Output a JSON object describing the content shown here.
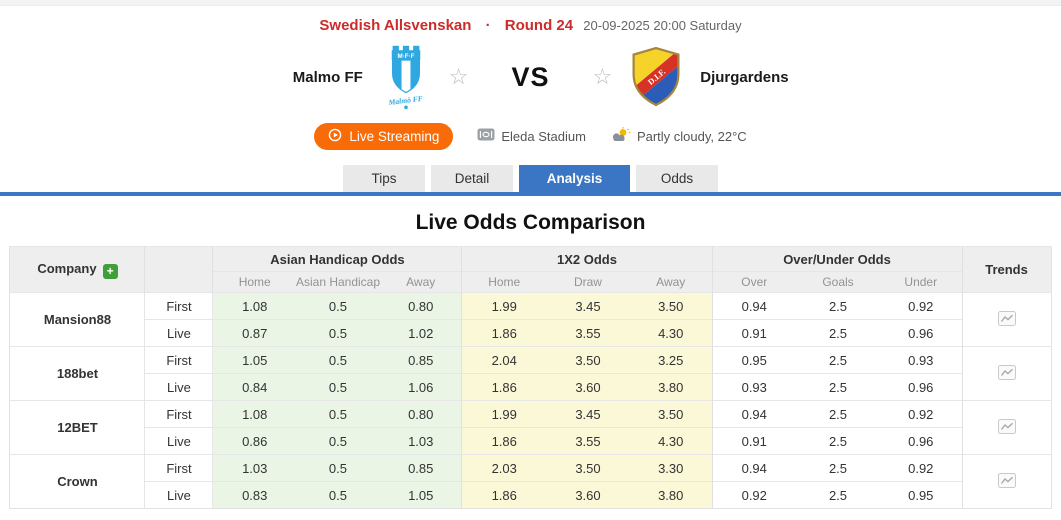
{
  "match_header": {
    "league": "Swedish Allsvenskan",
    "separator": "·",
    "round": "Round 24",
    "datetime": "20-09-2025 20:00 Saturday",
    "home_team": "Malmo FF",
    "away_team": "Djurgardens",
    "vs": "VS",
    "live_streaming_label": "Live Streaming",
    "stadium": "Eleda Stadium",
    "weather": "Partly cloudy, 22°C"
  },
  "icons": {
    "home_logo": "malmo-ff-crest",
    "away_logo": "djurgardens-crest",
    "favorite": "star-outline-icon",
    "live": "play-circle-icon",
    "stadium": "stadium-icon",
    "weather": "partly-cloudy-icon",
    "trends": "line-chart-icon",
    "add_company": "plus-icon"
  },
  "colors": {
    "accent_red": "#cb2b2b",
    "tab_active_blue": "#3b76c4",
    "streaming_orange": "#f96b07",
    "asian_handicap_cell": "#eaf5e6",
    "x2_cell": "#fbf8d8",
    "plus_green": "#3fa037"
  },
  "tabs": [
    {
      "label": "Tips",
      "active": false
    },
    {
      "label": "Detail",
      "active": false
    },
    {
      "label": "Analysis",
      "active": true
    },
    {
      "label": "Odds",
      "active": false
    }
  ],
  "section_title": "Live Odds Comparison",
  "odds_table": {
    "company_header": "Company",
    "trends_header": "Trends",
    "groups": [
      {
        "label": "Asian Handicap Odds",
        "columns": [
          "Home",
          "Asian Handicap",
          "Away"
        ]
      },
      {
        "label": "1X2 Odds",
        "columns": [
          "Home",
          "Draw",
          "Away"
        ]
      },
      {
        "label": "Over/Under Odds",
        "columns": [
          "Over",
          "Goals",
          "Under"
        ]
      }
    ],
    "companies": [
      {
        "name": "Mansion88",
        "rows": [
          {
            "type": "First",
            "ah": [
              "1.08",
              "0.5",
              "0.80"
            ],
            "x2": [
              "1.99",
              "3.45",
              "3.50"
            ],
            "ou": [
              "0.94",
              "2.5",
              "0.92"
            ]
          },
          {
            "type": "Live",
            "ah": [
              "0.87",
              "0.5",
              "1.02"
            ],
            "x2": [
              "1.86",
              "3.55",
              "4.30"
            ],
            "ou": [
              "0.91",
              "2.5",
              "0.96"
            ]
          }
        ]
      },
      {
        "name": "188bet",
        "rows": [
          {
            "type": "First",
            "ah": [
              "1.05",
              "0.5",
              "0.85"
            ],
            "x2": [
              "2.04",
              "3.50",
              "3.25"
            ],
            "ou": [
              "0.95",
              "2.5",
              "0.93"
            ]
          },
          {
            "type": "Live",
            "ah": [
              "0.84",
              "0.5",
              "1.06"
            ],
            "x2": [
              "1.86",
              "3.60",
              "3.80"
            ],
            "ou": [
              "0.93",
              "2.5",
              "0.96"
            ]
          }
        ]
      },
      {
        "name": "12BET",
        "rows": [
          {
            "type": "First",
            "ah": [
              "1.08",
              "0.5",
              "0.80"
            ],
            "x2": [
              "1.99",
              "3.45",
              "3.50"
            ],
            "ou": [
              "0.94",
              "2.5",
              "0.92"
            ]
          },
          {
            "type": "Live",
            "ah": [
              "0.86",
              "0.5",
              "1.03"
            ],
            "x2": [
              "1.86",
              "3.55",
              "4.30"
            ],
            "ou": [
              "0.91",
              "2.5",
              "0.96"
            ]
          }
        ]
      },
      {
        "name": "Crown",
        "rows": [
          {
            "type": "First",
            "ah": [
              "1.03",
              "0.5",
              "0.85"
            ],
            "x2": [
              "2.03",
              "3.50",
              "3.30"
            ],
            "ou": [
              "0.94",
              "2.5",
              "0.92"
            ]
          },
          {
            "type": "Live",
            "ah": [
              "0.83",
              "0.5",
              "1.05"
            ],
            "x2": [
              "1.86",
              "3.60",
              "3.80"
            ],
            "ou": [
              "0.92",
              "2.5",
              "0.95"
            ]
          }
        ]
      }
    ]
  }
}
